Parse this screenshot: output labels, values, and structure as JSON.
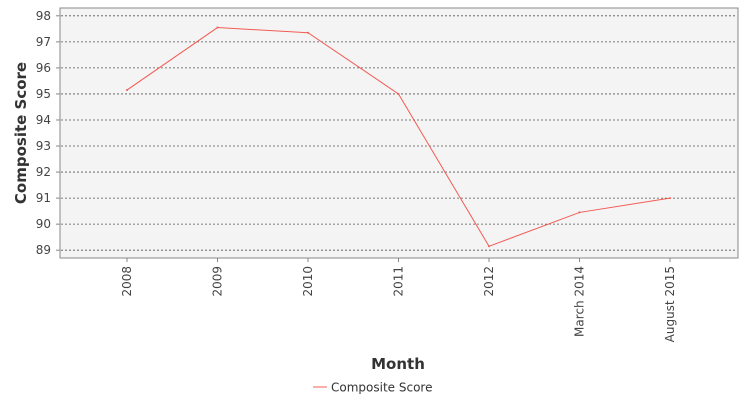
{
  "chart_data": {
    "type": "line",
    "title": "",
    "xlabel": "Month",
    "ylabel": "Composite Score",
    "categories": [
      "2008",
      "2009",
      "2010",
      "2011",
      "2012",
      "March 2014",
      "August 2015"
    ],
    "series": [
      {
        "name": "Composite Score",
        "values": [
          95.15,
          97.55,
          97.35,
          95.0,
          89.15,
          90.45,
          91.0
        ]
      }
    ],
    "ylim": [
      88.7,
      98.3
    ],
    "yticks": [
      89,
      90,
      91,
      92,
      93,
      94,
      95,
      96,
      97,
      98
    ],
    "grid": true,
    "legend_position": "bottom-center",
    "colors": {
      "series": "#f25c54",
      "plot_background": "#f4f4f4",
      "grid": "#555555",
      "frame": "#888888"
    }
  }
}
